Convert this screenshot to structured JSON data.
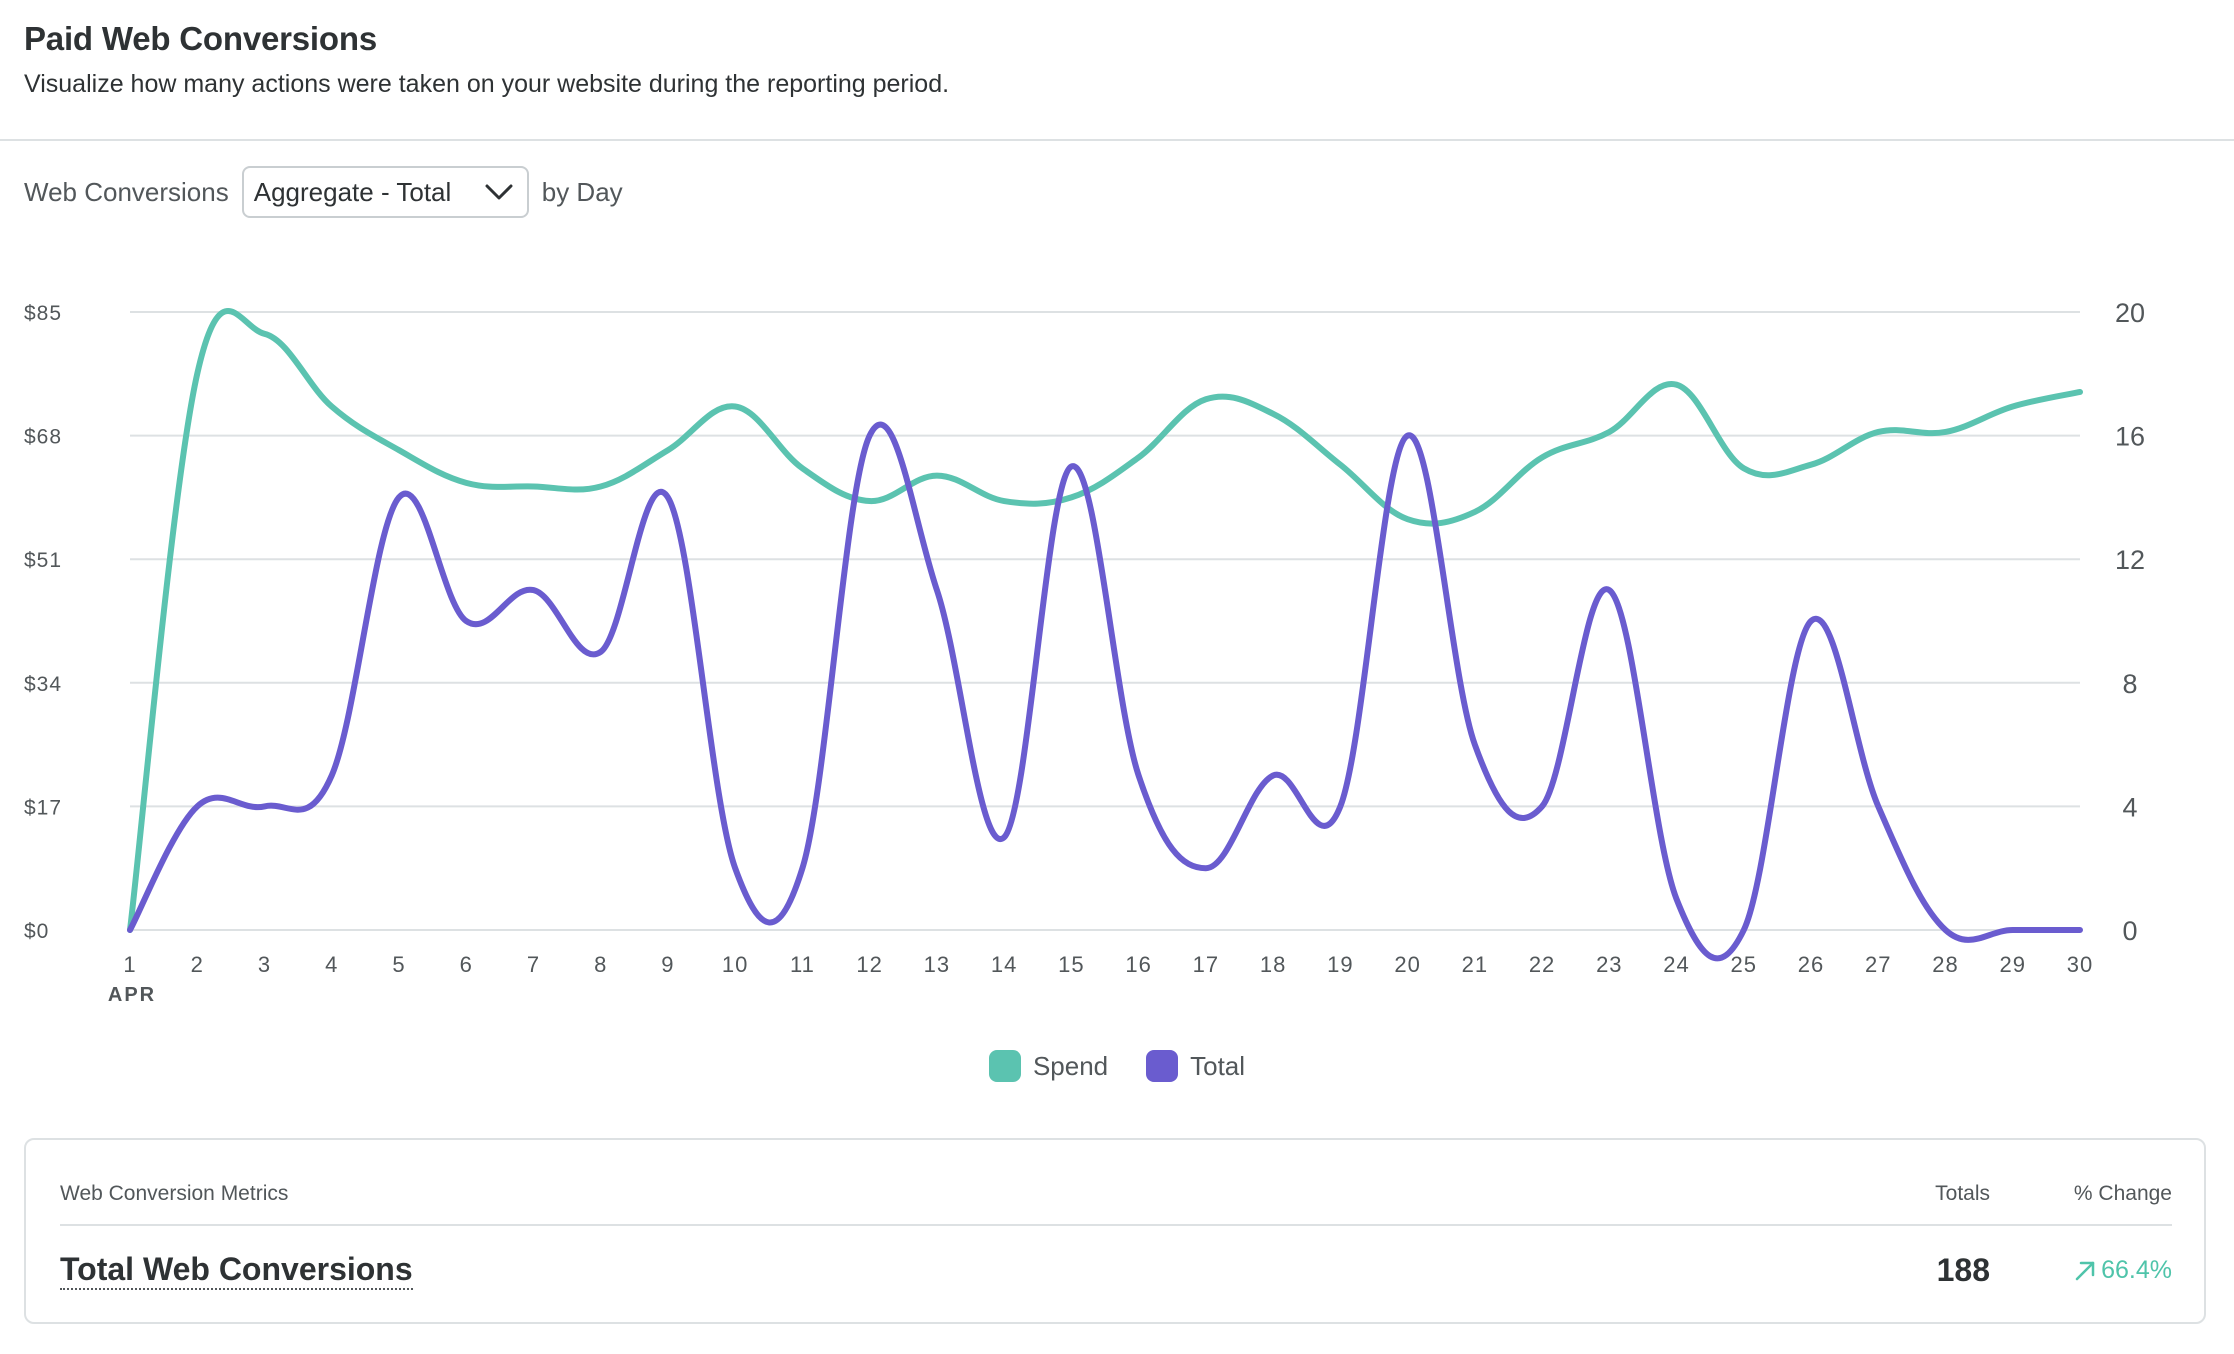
{
  "header": {
    "title": "Paid Web Conversions",
    "subtitle": "Visualize how many actions were taken on your website during the reporting period."
  },
  "controls": {
    "metric_label": "Web Conversions",
    "aggregate_selected": "Aggregate - Total",
    "suffix": "by Day"
  },
  "colors": {
    "spend": "#5bc3b0",
    "total": "#6a5ccf",
    "grid": "#dde1e3",
    "axis_text": "#52575a",
    "positive": "#4fc4aa"
  },
  "chart_data": {
    "type": "line",
    "x": [
      1,
      2,
      3,
      4,
      5,
      6,
      7,
      8,
      9,
      10,
      11,
      12,
      13,
      14,
      15,
      16,
      17,
      18,
      19,
      20,
      21,
      22,
      23,
      24,
      25,
      26,
      27,
      28,
      29,
      30
    ],
    "x_month_label": "APR",
    "ylim_left": [
      0,
      85
    ],
    "yticks_left": [
      "$0",
      "$17",
      "$34",
      "$51",
      "$68",
      "$85"
    ],
    "ylim_right": [
      0,
      20
    ],
    "yticks_right": [
      "0",
      "4",
      "8",
      "12",
      "16",
      "20"
    ],
    "grid": true,
    "legend": "bottom-center",
    "series": [
      {
        "name": "Spend",
        "axis": "left",
        "values": [
          0,
          76.5,
          82,
          72,
          66,
          61.5,
          61,
          61,
          66,
          72,
          63.5,
          59,
          62.5,
          59,
          59.5,
          65,
          73,
          71,
          64,
          56.5,
          57.5,
          65,
          68.5,
          75,
          63.5,
          64,
          68.5,
          68.5,
          72,
          74
        ]
      },
      {
        "name": "Total",
        "axis": "right",
        "values": [
          0,
          4,
          4,
          5,
          14,
          10,
          11,
          9,
          14,
          2,
          2,
          16,
          11,
          3,
          15,
          5,
          2,
          5,
          4,
          16,
          6,
          4,
          11,
          1,
          0,
          10,
          4,
          0,
          0,
          0
        ]
      }
    ]
  },
  "legend": [
    {
      "label": "Spend"
    },
    {
      "label": "Total"
    }
  ],
  "metrics": {
    "header": {
      "name": "Web Conversion Metrics",
      "totals": "Totals",
      "change": "% Change"
    },
    "rows": [
      {
        "name": "Total Web Conversions",
        "total": "188",
        "change": "66.4%",
        "icon": "arrow-up-right-icon"
      }
    ]
  }
}
